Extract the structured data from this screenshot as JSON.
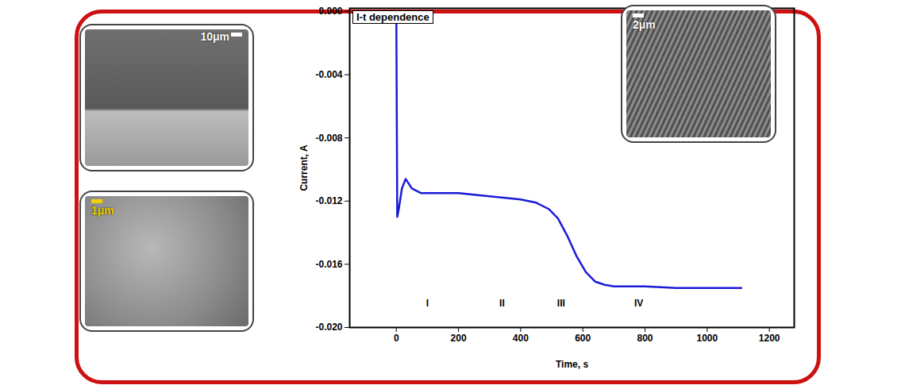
{
  "chart_data": {
    "type": "line",
    "title": "I-t dependence",
    "x_label": "Time, s",
    "y_label": "Current, A",
    "xlim": [
      -150,
      1280
    ],
    "xticks": [
      0,
      200,
      400,
      600,
      800,
      1000,
      1200
    ],
    "ylim": [
      -0.02,
      0.0002
    ],
    "yticks": [
      {
        "value": 0,
        "label": "0.000"
      },
      {
        "value": -0.004,
        "label": "-0.004"
      },
      {
        "value": -0.008,
        "label": "-0.008"
      },
      {
        "value": -0.012,
        "label": "-0.012"
      },
      {
        "value": -0.016,
        "label": "-0.016"
      },
      {
        "value": -0.02,
        "label": "-0.020"
      }
    ],
    "grid": false,
    "series": [
      {
        "name": "I-t dependence",
        "color": "#1a1ad6",
        "x": [
          0,
          3,
          8,
          18,
          30,
          50,
          80,
          120,
          200,
          300,
          400,
          450,
          490,
          520,
          550,
          580,
          610,
          640,
          670,
          700,
          800,
          900,
          1000,
          1110
        ],
        "values": [
          0,
          -0.013,
          -0.0125,
          -0.0112,
          -0.0106,
          -0.0112,
          -0.0115,
          -0.0115,
          -0.0115,
          -0.0117,
          -0.0119,
          -0.0121,
          -0.0125,
          -0.0131,
          -0.0142,
          -0.0155,
          -0.0165,
          -0.0171,
          -0.0173,
          -0.0174,
          -0.0174,
          -0.0175,
          -0.0175,
          -0.0175
        ]
      }
    ],
    "annotations": [
      {
        "text": "I",
        "x": 100,
        "y": -0.0185
      },
      {
        "text": "II",
        "x": 340,
        "y": -0.0185
      },
      {
        "text": "III",
        "x": 530,
        "y": -0.0185
      },
      {
        "text": "IV",
        "x": 780,
        "y": -0.0185
      }
    ],
    "insets": [
      {
        "scale_label": "10μm"
      },
      {
        "scale_label": "2μm"
      },
      {
        "scale_label": "1μm"
      }
    ]
  }
}
